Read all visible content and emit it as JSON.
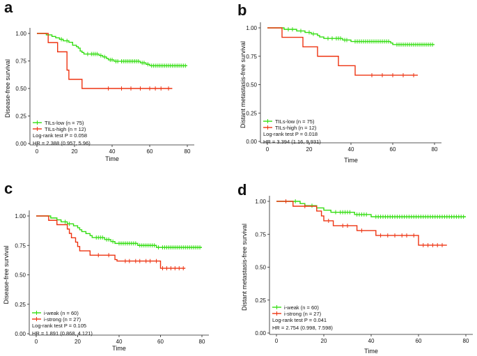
{
  "chart_data": [
    {
      "type": "line",
      "panel_label": "a",
      "xlabel": "Time",
      "ylabel": "Disease-free survival",
      "xlim": [
        0,
        80
      ],
      "ylim": [
        0,
        1
      ],
      "xticks": [
        "0",
        "20",
        "40",
        "60",
        "80"
      ],
      "yticks": [
        "0.00",
        "0.25",
        "0.50",
        "0.75",
        "1.00"
      ],
      "series": [
        {
          "name": "TILs-low (n = 75)",
          "color": "#33dd11",
          "steps": [
            [
              0,
              1.0
            ],
            [
              5,
              0.987
            ],
            [
              8,
              0.973
            ],
            [
              10,
              0.96
            ],
            [
              12,
              0.947
            ],
            [
              14,
              0.933
            ],
            [
              17,
              0.92
            ],
            [
              19,
              0.893
            ],
            [
              21,
              0.88
            ],
            [
              22,
              0.867
            ],
            [
              23,
              0.84
            ],
            [
              24,
              0.827
            ],
            [
              25,
              0.813
            ],
            [
              33,
              0.8
            ],
            [
              35,
              0.787
            ],
            [
              37,
              0.773
            ],
            [
              38,
              0.76
            ],
            [
              41,
              0.747
            ],
            [
              55,
              0.733
            ],
            [
              58,
              0.72
            ],
            [
              60,
              0.707
            ],
            [
              80,
              0.707
            ]
          ],
          "censors": [
            13,
            16,
            27,
            29,
            30,
            31,
            32,
            34,
            36,
            39,
            40,
            42,
            43,
            45,
            46,
            47,
            48,
            49,
            50,
            51,
            52,
            53,
            54,
            56,
            57,
            59,
            61,
            62,
            63,
            64,
            65,
            66,
            67,
            68,
            69,
            70,
            71,
            72,
            73,
            74,
            75,
            76,
            77,
            78,
            79
          ]
        },
        {
          "name": "TILs-high (n = 12)",
          "color": "#ee3311",
          "steps": [
            [
              0,
              1.0
            ],
            [
              6,
              0.917
            ],
            [
              11,
              0.833
            ],
            [
              16,
              0.667
            ],
            [
              17,
              0.583
            ],
            [
              24,
              0.5
            ],
            [
              72,
              0.5
            ]
          ],
          "censors": [
            38,
            45,
            50,
            55,
            60,
            63,
            66,
            70
          ]
        }
      ],
      "annotations": [
        "Log-rank test P = 0.058",
        "HR = 2.388 (0.957, 5.96)"
      ]
    },
    {
      "type": "line",
      "panel_label": "b",
      "xlabel": "Time",
      "ylabel": "Distant metastasis-free survival",
      "xlim": [
        0,
        80
      ],
      "ylim": [
        0,
        1
      ],
      "xticks": [
        "0",
        "20",
        "40",
        "60",
        "80"
      ],
      "yticks": [
        "0.00",
        "0.25",
        "0.50",
        "0.75",
        "1.00"
      ],
      "series": [
        {
          "name": "TILs-low (n = 75)",
          "color": "#33dd11",
          "steps": [
            [
              0,
              1.0
            ],
            [
              8,
              0.987
            ],
            [
              14,
              0.973
            ],
            [
              18,
              0.96
            ],
            [
              21,
              0.947
            ],
            [
              24,
              0.933
            ],
            [
              25,
              0.92
            ],
            [
              27,
              0.907
            ],
            [
              36,
              0.893
            ],
            [
              40,
              0.88
            ],
            [
              59,
              0.867
            ],
            [
              60,
              0.853
            ],
            [
              80,
              0.853
            ]
          ],
          "censors": [
            10,
            12,
            16,
            20,
            22,
            29,
            31,
            33,
            34,
            35,
            37,
            38,
            42,
            43,
            44,
            45,
            46,
            47,
            48,
            49,
            50,
            51,
            52,
            53,
            54,
            55,
            56,
            57,
            58,
            62,
            63,
            64,
            65,
            66,
            67,
            68,
            69,
            70,
            71,
            72,
            73,
            74,
            75,
            76,
            77,
            78,
            79
          ]
        },
        {
          "name": "TILs-high (n = 12)",
          "color": "#ee3311",
          "steps": [
            [
              0,
              1.0
            ],
            [
              7,
              0.917
            ],
            [
              17,
              0.833
            ],
            [
              24,
              0.75
            ],
            [
              34,
              0.667
            ],
            [
              42,
              0.583
            ],
            [
              72,
              0.583
            ]
          ],
          "censors": [
            50,
            55,
            60,
            65,
            70
          ]
        }
      ],
      "annotations": [
        "Log-rank test P = 0.018",
        "HR = 3.394 (1.16, 9.931)"
      ]
    },
    {
      "type": "line",
      "panel_label": "c",
      "xlabel": "Time",
      "ylabel": "Disease-free survival",
      "xlim": [
        0,
        80
      ],
      "ylim": [
        0,
        1
      ],
      "xticks": [
        "0",
        "20",
        "40",
        "60",
        "80"
      ],
      "yticks": [
        "0.00",
        "0.25",
        "0.50",
        "0.75",
        "1.00"
      ],
      "series": [
        {
          "name": "i-weak (n = 60)",
          "color": "#33dd11",
          "steps": [
            [
              0,
              1.0
            ],
            [
              7,
              0.983
            ],
            [
              10,
              0.967
            ],
            [
              12,
              0.95
            ],
            [
              15,
              0.933
            ],
            [
              18,
              0.917
            ],
            [
              20,
              0.9
            ],
            [
              21,
              0.883
            ],
            [
              22,
              0.867
            ],
            [
              24,
              0.85
            ],
            [
              26,
              0.833
            ],
            [
              27,
              0.817
            ],
            [
              33,
              0.8
            ],
            [
              36,
              0.783
            ],
            [
              38,
              0.767
            ],
            [
              49,
              0.75
            ],
            [
              58,
              0.733
            ],
            [
              80,
              0.733
            ]
          ],
          "censors": [
            14,
            16,
            29,
            30,
            31,
            32,
            34,
            35,
            37,
            40,
            41,
            42,
            43,
            44,
            45,
            46,
            47,
            48,
            50,
            51,
            52,
            53,
            54,
            55,
            56,
            57,
            59,
            61,
            62,
            63,
            64,
            65,
            66,
            67,
            68,
            69,
            70,
            71,
            72,
            73,
            74,
            75,
            76,
            77,
            78,
            79
          ]
        },
        {
          "name": "i-strong (n = 27)",
          "color": "#ee3311",
          "steps": [
            [
              0,
              1.0
            ],
            [
              6,
              0.963
            ],
            [
              10,
              0.926
            ],
            [
              15,
              0.889
            ],
            [
              16,
              0.852
            ],
            [
              17,
              0.815
            ],
            [
              19,
              0.778
            ],
            [
              20,
              0.741
            ],
            [
              21,
              0.704
            ],
            [
              26,
              0.667
            ],
            [
              38,
              0.63
            ],
            [
              39,
              0.617
            ],
            [
              60,
              0.556
            ],
            [
              72,
              0.556
            ]
          ],
          "censors": [
            30,
            35,
            43,
            45,
            48,
            50,
            53,
            55,
            58,
            61,
            63,
            65,
            67,
            69,
            71
          ]
        }
      ],
      "annotations": [
        "Log-rank test P = 0.105",
        "HR = 1.891 (0.868, 4.121)"
      ]
    },
    {
      "type": "line",
      "panel_label": "d",
      "xlabel": "Time",
      "ylabel": "Distant metastasis-free survival",
      "xlim": [
        0,
        80
      ],
      "ylim": [
        0,
        1
      ],
      "xticks": [
        "0",
        "20",
        "40",
        "60",
        "80"
      ],
      "yticks": [
        "0.00",
        "0.25",
        "0.50",
        "0.75",
        "1.00"
      ],
      "series": [
        {
          "name": "i-weak (n = 60)",
          "color": "#33dd11",
          "steps": [
            [
              0,
              1.0
            ],
            [
              10,
              0.983
            ],
            [
              12,
              0.967
            ],
            [
              17,
              0.95
            ],
            [
              20,
              0.933
            ],
            [
              23,
              0.917
            ],
            [
              33,
              0.9
            ],
            [
              40,
              0.883
            ],
            [
              80,
              0.883
            ]
          ],
          "censors": [
            8,
            15,
            25,
            27,
            28,
            29,
            30,
            31,
            34,
            35,
            36,
            37,
            38,
            42,
            43,
            44,
            45,
            46,
            47,
            48,
            49,
            50,
            51,
            52,
            53,
            54,
            55,
            56,
            57,
            58,
            59,
            60,
            61,
            62,
            63,
            64,
            65,
            66,
            67,
            68,
            69,
            70,
            71,
            72,
            73,
            74,
            75,
            76,
            77,
            78,
            79
          ]
        },
        {
          "name": "i-strong (n = 27)",
          "color": "#ee3311",
          "steps": [
            [
              0,
              1.0
            ],
            [
              7,
              0.963
            ],
            [
              17,
              0.926
            ],
            [
              19,
              0.889
            ],
            [
              20,
              0.852
            ],
            [
              24,
              0.815
            ],
            [
              34,
              0.778
            ],
            [
              42,
              0.741
            ],
            [
              60,
              0.667
            ],
            [
              72,
              0.667
            ]
          ],
          "censors": [
            4,
            12,
            22,
            28,
            30,
            36,
            44,
            47,
            50,
            53,
            55,
            58,
            62,
            64,
            66,
            68,
            70
          ]
        }
      ],
      "annotations": [
        "Log-rank test P = 0.041",
        "HR = 2.754 (0.998, 7.598)"
      ]
    }
  ]
}
